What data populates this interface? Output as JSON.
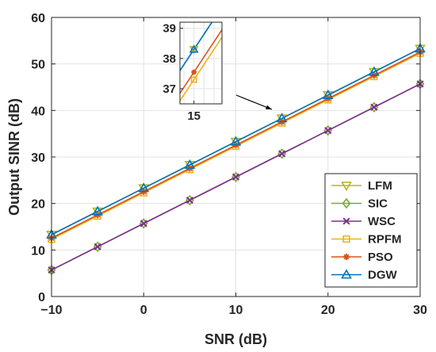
{
  "chart_data": {
    "type": "line",
    "xlabel": "SNR (dB)",
    "ylabel": "Output SINR (dB)",
    "xlim": [
      -10,
      30
    ],
    "ylim": [
      0,
      60
    ],
    "xticks": [
      -10,
      0,
      10,
      20,
      30
    ],
    "yticks": [
      0,
      10,
      20,
      30,
      40,
      50,
      60
    ],
    "grid": true,
    "legend_position": "bottom-right",
    "x": [
      -10,
      -5,
      0,
      5,
      10,
      15,
      20,
      25,
      30
    ],
    "series": [
      {
        "name": "LFM",
        "color": "#b5b820",
        "marker": "triangle-down",
        "values": [
          13.3,
          18.3,
          23.3,
          28.3,
          33.3,
          38.3,
          43.3,
          48.3,
          53.3
        ]
      },
      {
        "name": "SIC",
        "color": "#77ac30",
        "marker": "diamond",
        "values": [
          5.7,
          10.7,
          15.7,
          20.7,
          25.7,
          30.7,
          35.7,
          40.7,
          45.7
        ]
      },
      {
        "name": "WSC",
        "color": "#7e2f8e",
        "marker": "x",
        "values": [
          5.7,
          10.7,
          15.7,
          20.7,
          25.7,
          30.7,
          35.7,
          40.7,
          45.7
        ]
      },
      {
        "name": "RPFM",
        "color": "#edb120",
        "marker": "square",
        "values": [
          12.3,
          17.3,
          22.3,
          27.3,
          32.3,
          37.3,
          42.3,
          47.3,
          52.3
        ]
      },
      {
        "name": "PSO",
        "color": "#d95319",
        "marker": "asterisk",
        "values": [
          12.55,
          17.55,
          22.55,
          27.55,
          32.55,
          37.55,
          42.55,
          47.55,
          52.55
        ]
      },
      {
        "name": "DGW",
        "color": "#0072bd",
        "marker": "triangle-up",
        "values": [
          13.3,
          18.3,
          23.3,
          28.3,
          33.3,
          38.3,
          43.3,
          48.3,
          53.3
        ]
      }
    ],
    "inset": {
      "xlim": [
        14.3,
        16.4
      ],
      "ylim": [
        36.5,
        39.2
      ],
      "xticks": [
        15
      ],
      "yticks": [
        37,
        38,
        39
      ],
      "marker_x": 15
    }
  }
}
